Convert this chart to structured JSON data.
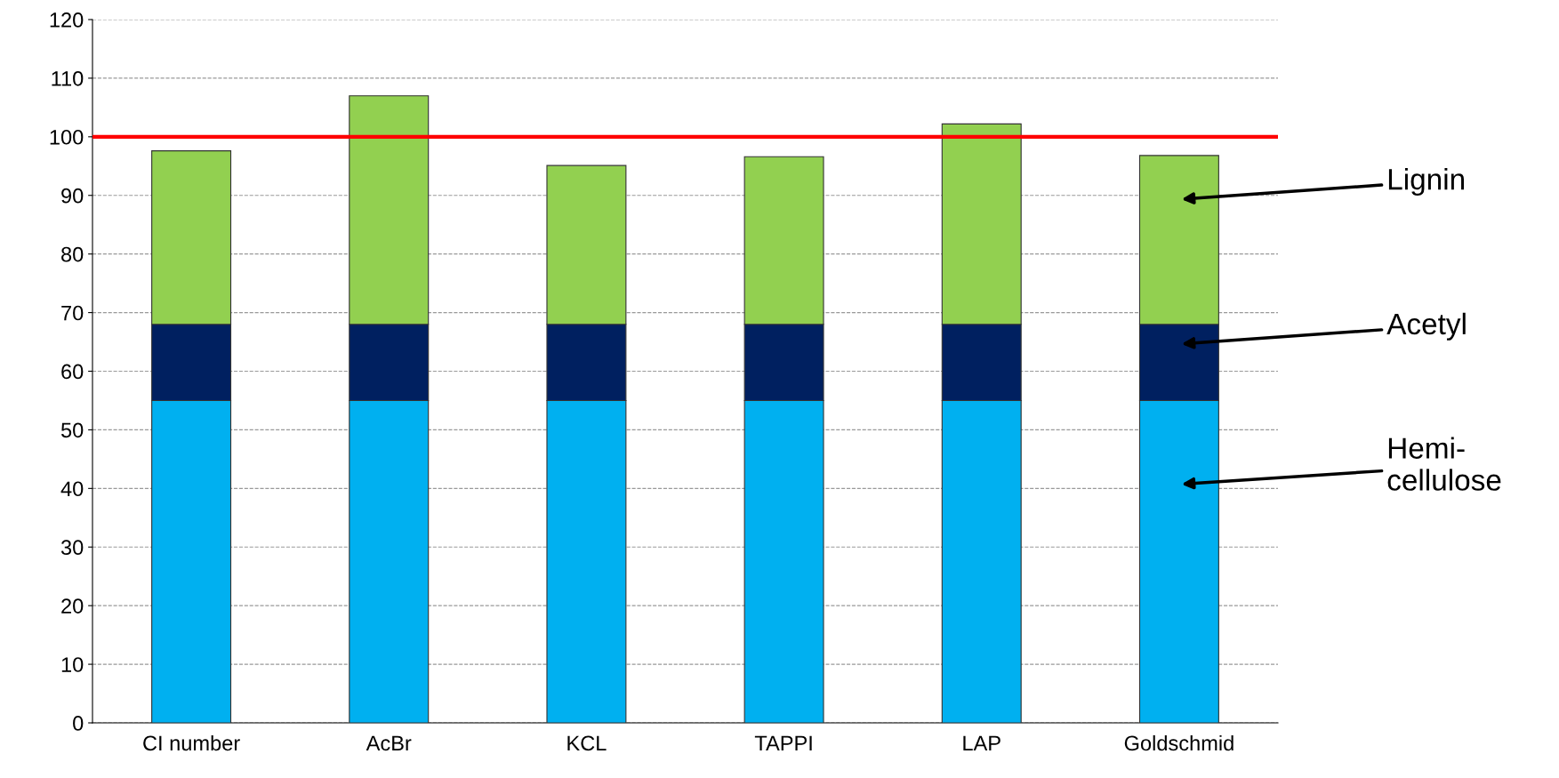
{
  "chart_data": {
    "type": "bar",
    "stacked": true,
    "categories": [
      "CI number",
      "AcBr",
      "KCL",
      "TAPPI",
      "LAP",
      "Goldschmid"
    ],
    "series": [
      {
        "name": "Hemi-\ncellulose",
        "color": "#00b0f0",
        "values": [
          55,
          55,
          55,
          55,
          55,
          55
        ]
      },
      {
        "name": "Acetyl",
        "color": "#002060",
        "values": [
          13,
          13,
          13,
          13,
          13,
          13
        ]
      },
      {
        "name": "Lignin",
        "color": "#92d050",
        "values": [
          29.6,
          39,
          27.1,
          28.6,
          34.2,
          28.8
        ]
      }
    ],
    "ylim": [
      0,
      120
    ],
    "yticks": [
      0,
      10,
      20,
      30,
      40,
      50,
      60,
      70,
      80,
      90,
      100,
      110,
      120
    ],
    "grid": "y",
    "legend": false,
    "ref_lines": [
      {
        "axis": "y",
        "value": 100,
        "color": "#ff0000"
      }
    ]
  }
}
